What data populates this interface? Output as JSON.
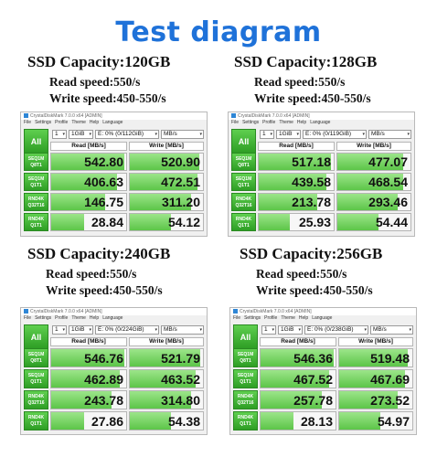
{
  "title": "Test diagram",
  "app": {
    "window_title": "CrystalDiskMark 7.0.0 x64 [ADMIN]",
    "menu": [
      "File",
      "Settings",
      "Profile",
      "Theme",
      "Help",
      "Language"
    ],
    "all_label": "All",
    "count": "1",
    "size": "1GiB",
    "unit": "MB/s",
    "read_header": "Read [MB/s]",
    "write_header": "Write [MB/s]",
    "row_labels": [
      [
        "SEQ1M",
        "Q8T1"
      ],
      [
        "SEQ1M",
        "Q1T1"
      ],
      [
        "RND4K",
        "Q32T16"
      ],
      [
        "RND4K",
        "Q1T1"
      ]
    ]
  },
  "panels": [
    {
      "capacity": "SSD Capacity:120GB",
      "read_speed": "Read speed:550/s",
      "write_speed": "Write speed:450-550/s",
      "drive": "E: 0% (0/112GiB)",
      "read": [
        "542.80",
        "406.63",
        "146.75",
        "28.84"
      ],
      "write": [
        "520.90",
        "472.51",
        "311.20",
        "54.12"
      ]
    },
    {
      "capacity": "SSD Capacity:128GB",
      "read_speed": "Read speed:550/s",
      "write_speed": "Write speed:450-550/s",
      "drive": "E: 0% (0/119GiB)",
      "read": [
        "517.18",
        "439.58",
        "213.78",
        "25.93"
      ],
      "write": [
        "477.07",
        "468.54",
        "293.46",
        "54.44"
      ]
    },
    {
      "capacity": "SSD Capacity:240GB",
      "read_speed": "Read speed:550/s",
      "write_speed": "Write speed:450-550/s",
      "drive": "E: 0% (0/224GiB)",
      "read": [
        "546.76",
        "462.89",
        "243.78",
        "27.86"
      ],
      "write": [
        "521.79",
        "463.52",
        "314.80",
        "54.38"
      ]
    },
    {
      "capacity": "SSD Capacity:256GB",
      "read_speed": "Read speed:550/s",
      "write_speed": "Write speed:450-550/s",
      "drive": "E: 0% (0/238GiB)",
      "read": [
        "546.36",
        "467.52",
        "257.78",
        "28.13"
      ],
      "write": [
        "519.48",
        "467.69",
        "273.52",
        "54.97"
      ]
    }
  ]
}
